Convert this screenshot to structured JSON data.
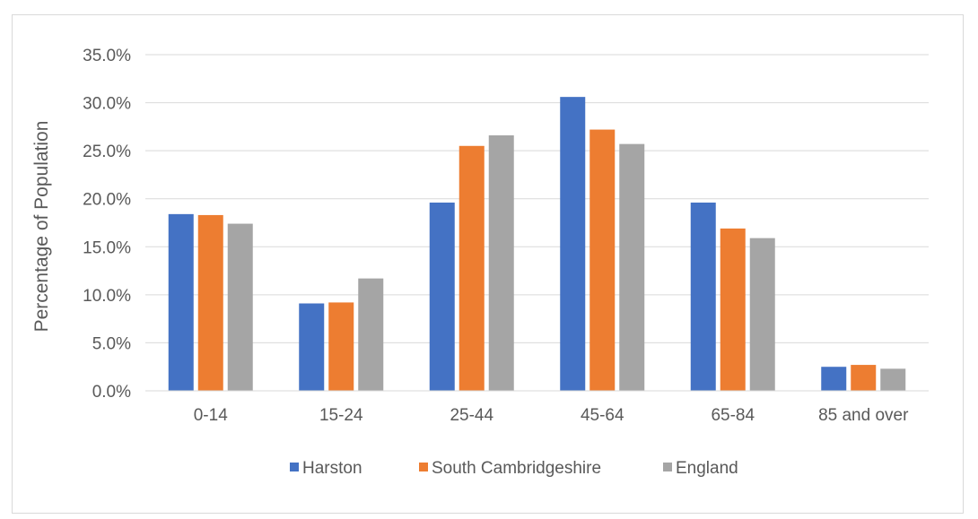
{
  "chart_data": {
    "type": "bar",
    "title": "",
    "xlabel": "",
    "ylabel": "Percentage of Population",
    "ylim": [
      0,
      35
    ],
    "yticks": [
      "0.0%",
      "5.0%",
      "10.0%",
      "15.0%",
      "20.0%",
      "25.0%",
      "30.0%",
      "35.0%"
    ],
    "grid": true,
    "legend": "bottom",
    "categories": [
      "0-14",
      "15-24",
      "25-44",
      "45-64",
      "65-84",
      "85 and over"
    ],
    "series": [
      {
        "name": "Harston",
        "color": "#4472c4",
        "values": [
          18.4,
          9.1,
          19.6,
          30.6,
          19.6,
          2.5
        ]
      },
      {
        "name": "South Cambridgeshire",
        "color": "#ed7d31",
        "values": [
          18.3,
          9.2,
          25.5,
          27.2,
          16.9,
          2.7
        ]
      },
      {
        "name": "England",
        "color": "#a5a5a5",
        "values": [
          17.4,
          11.7,
          26.6,
          25.7,
          15.9,
          2.3
        ]
      }
    ]
  }
}
